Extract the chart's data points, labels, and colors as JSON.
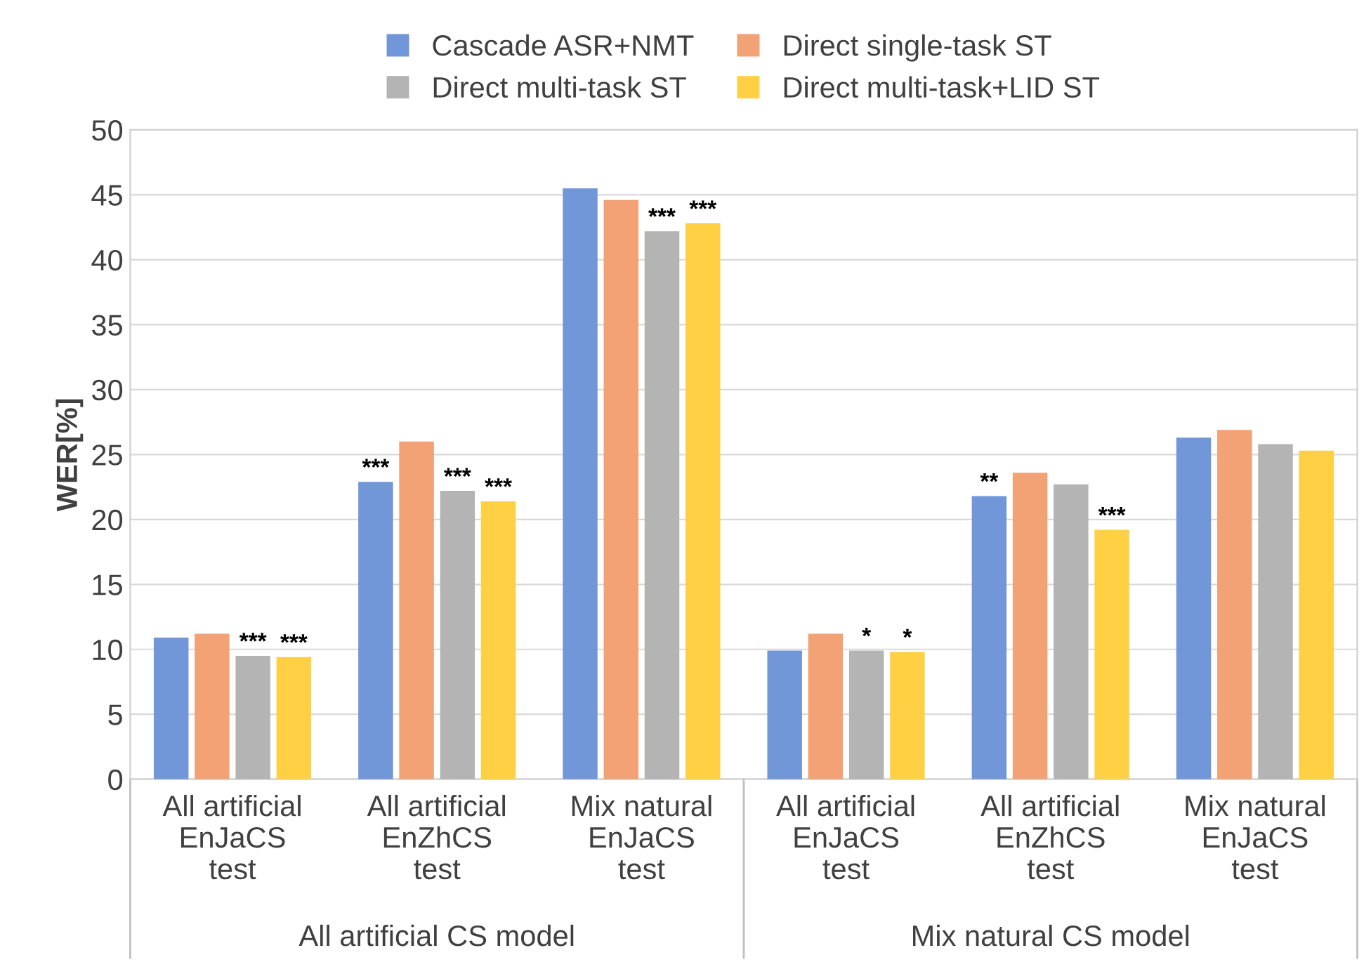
{
  "chart_data": {
    "type": "bar",
    "ylabel": "WER[%]",
    "categories": [
      "All artificial\nEnJaCS\ntest",
      "All artificial\nEnZhCS\ntest",
      "Mix natural\nEnJaCS\ntest",
      "All artificial\nEnJaCS\ntest",
      "All artificial\nEnZhCS\ntest",
      "Mix natural\nEnJaCS\ntest"
    ],
    "series": [
      {
        "name": "Cascade ASR+NMT",
        "color": "#7197d8",
        "values": [
          10.9,
          22.9,
          45.5,
          9.9,
          21.8,
          26.3
        ],
        "value_labels": [
          null,
          "***",
          null,
          null,
          "**",
          null
        ]
      },
      {
        "name": "Direct single-task ST",
        "color": "#f2a274",
        "values": [
          11.2,
          26.0,
          44.6,
          11.2,
          23.6,
          26.9
        ],
        "value_labels": [
          null,
          null,
          null,
          null,
          null,
          null
        ]
      },
      {
        "name": "Direct multi-task ST",
        "color": "#b4b4b4",
        "values": [
          9.5,
          22.2,
          42.2,
          9.9,
          22.7,
          25.8
        ],
        "value_labels": [
          "***",
          "***",
          "***",
          "*",
          null,
          null
        ]
      },
      {
        "name": "Direct multi-task+LID ST",
        "color": "#ffd044",
        "values": [
          9.4,
          21.4,
          42.8,
          9.8,
          19.2,
          25.3
        ],
        "value_labels": [
          "***",
          "***",
          "***",
          "*",
          "***",
          null
        ]
      }
    ],
    "annotations": [
      "All artificial CS model",
      "Mix natural CS model"
    ],
    "ylim": [
      0,
      50
    ],
    "yticks": [
      0,
      5,
      10,
      15,
      20,
      25,
      30,
      35,
      40,
      45,
      50
    ],
    "grid": "y",
    "legend": "top"
  }
}
